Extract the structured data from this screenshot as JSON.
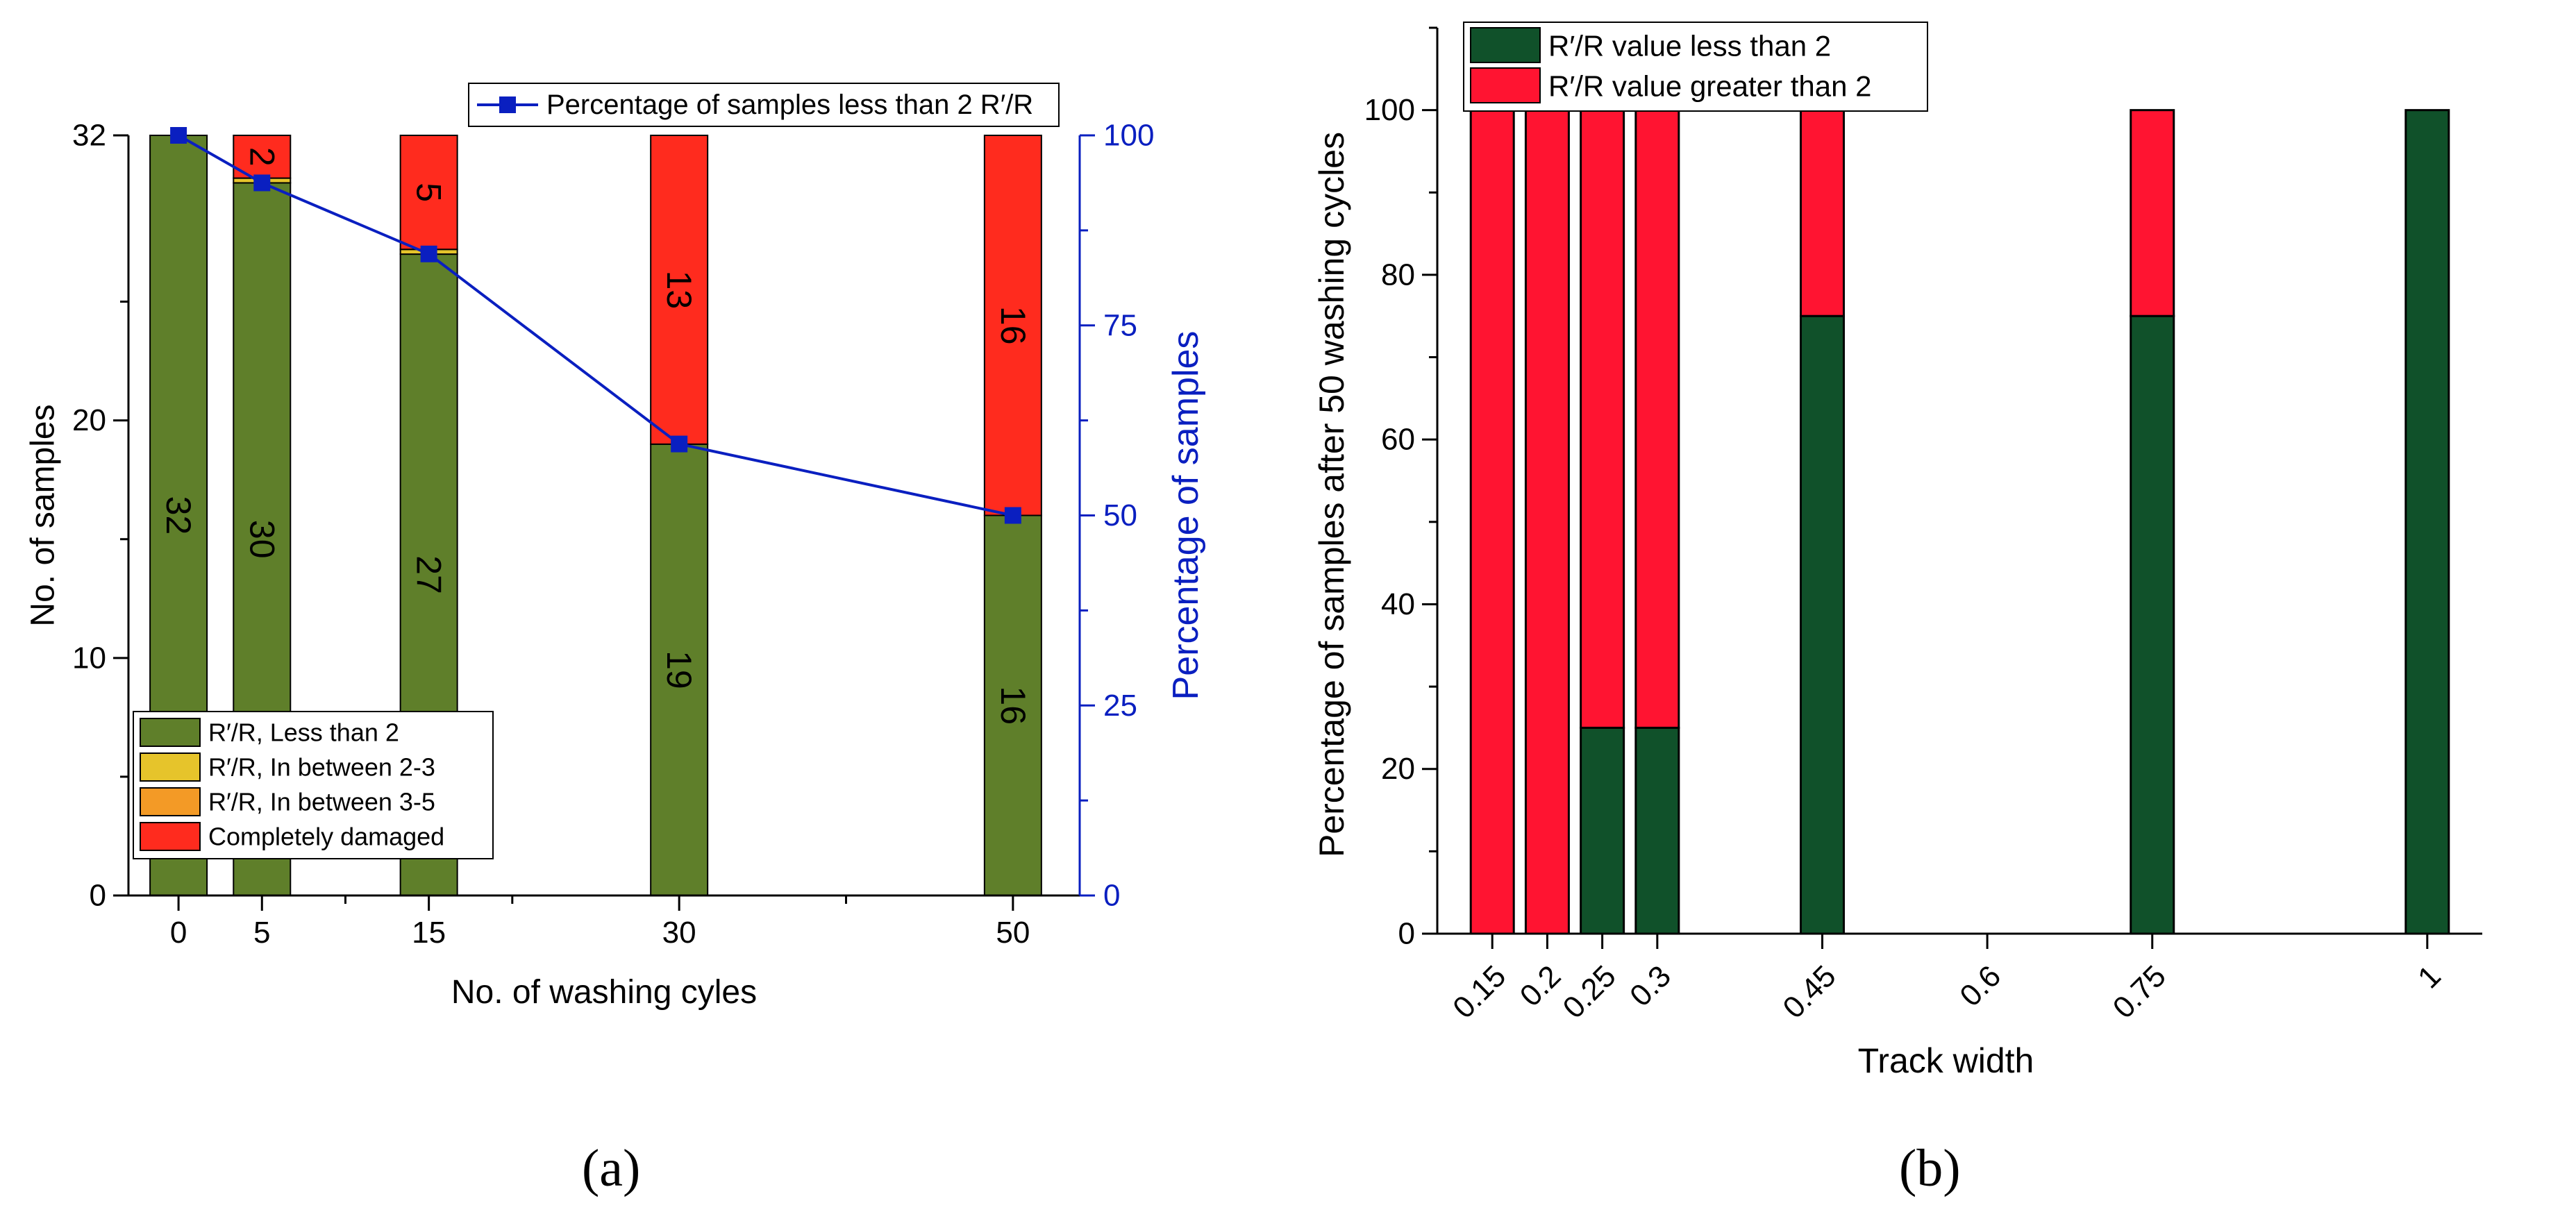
{
  "colors": {
    "green_a": "#5f7f2a",
    "yellow_a": "#e6c42b",
    "orange_a": "#f39a26",
    "red_a": "#ff2b1e",
    "blue_line": "#0a1fc0",
    "green_b": "#10512a",
    "red_b": "#ff1431"
  },
  "chart_data": [
    {
      "type": "bar",
      "panel_label": "(a)",
      "xlabel": "No. of washing cyles",
      "ylabel": "No. of samples",
      "ylabel_right": "Percentage of samples",
      "x_ticks": [
        "0",
        "5",
        "15",
        "30",
        "50"
      ],
      "y_ticks": [
        "0",
        "10",
        "20",
        "32"
      ],
      "y2_ticks": [
        "0",
        "25",
        "50",
        "75",
        "100"
      ],
      "ylim": [
        0,
        32
      ],
      "y2lim": [
        0,
        100
      ],
      "xlim": [
        -3,
        54
      ],
      "categories": [
        0,
        5,
        15,
        30,
        50
      ],
      "series": [
        {
          "name": "R′/R, Less than 2",
          "values": [
            32,
            30,
            27,
            19,
            16
          ],
          "labels": [
            "32",
            "30",
            "27",
            "19",
            "16"
          ]
        },
        {
          "name": "R′/R, In between 2-3",
          "values": [
            0,
            0.2,
            0.2,
            0,
            0
          ],
          "labels": []
        },
        {
          "name": "R′/R, In between 3-5",
          "values": [
            0,
            0,
            0,
            0,
            0
          ],
          "labels": []
        },
        {
          "name": "Completely damaged",
          "values": [
            0,
            1.8,
            4.8,
            13,
            16
          ],
          "labels": [
            "",
            "2",
            "5",
            "13",
            "16"
          ]
        }
      ],
      "line_series": {
        "name": "Percentage of samples less than 2 R′/R",
        "x": [
          0,
          5,
          15,
          30,
          50
        ],
        "values": [
          100,
          93.75,
          84.4,
          59.4,
          50
        ]
      }
    },
    {
      "type": "bar",
      "panel_label": "(b)",
      "xlabel": "Track width",
      "ylabel": "Percentage of samples after 50 washing cycles",
      "x_ticks": [
        "0.15",
        "0.2",
        "0.25",
        "0.3",
        "0.45",
        "0.6",
        "0.75",
        "1"
      ],
      "y_ticks": [
        "0",
        "20",
        "40",
        "60",
        "80",
        "100"
      ],
      "ylim": [
        0,
        110
      ],
      "xlim": [
        0.1,
        1.05
      ],
      "categories": [
        0.15,
        0.2,
        0.25,
        0.3,
        0.45,
        0.6,
        0.75,
        1
      ],
      "series": [
        {
          "name": "R′/R value less than 2",
          "values": [
            0,
            0,
            25,
            25,
            75,
            0,
            75,
            100
          ]
        },
        {
          "name": "R′/R value greater than 2",
          "values": [
            100,
            100,
            75,
            75,
            25,
            0,
            25,
            0
          ]
        }
      ]
    }
  ]
}
